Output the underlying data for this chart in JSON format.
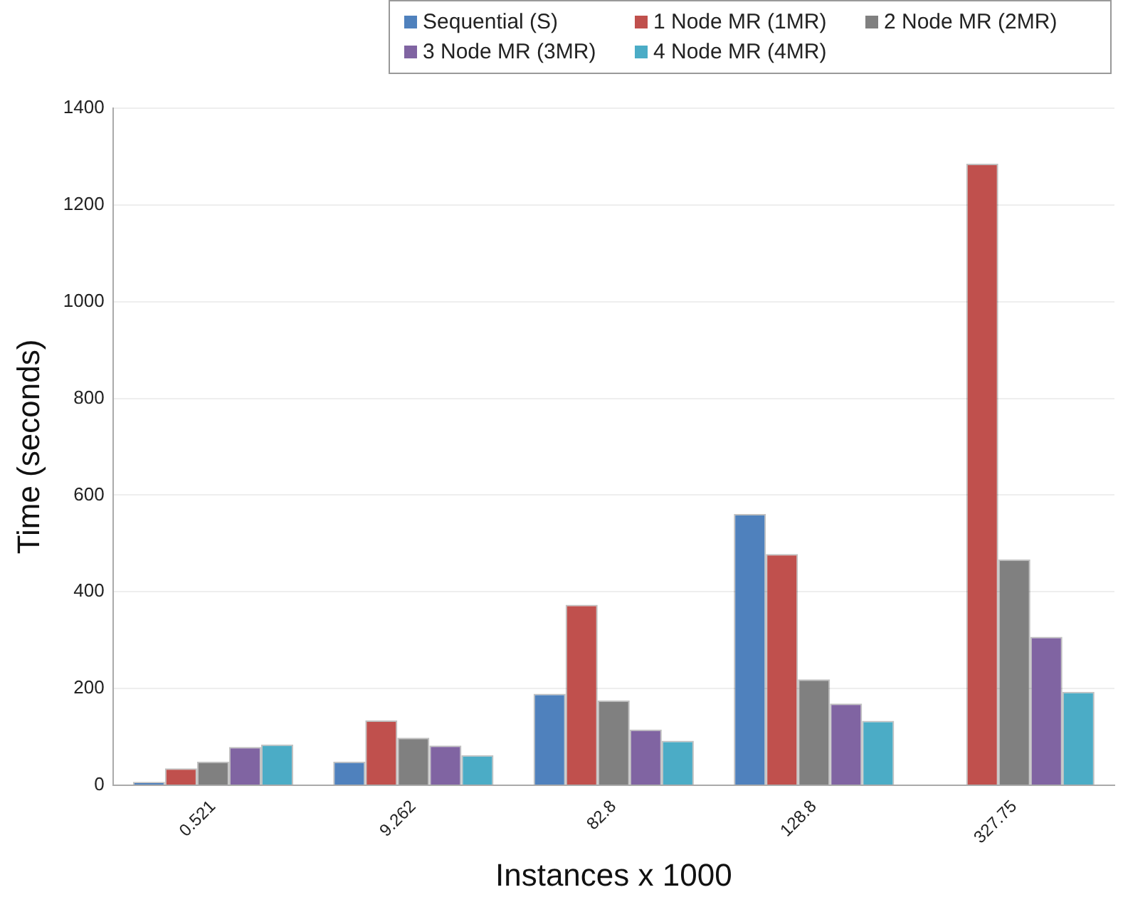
{
  "chart_data": {
    "type": "bar",
    "xlabel": "Instances x 1000",
    "ylabel": "Time (seconds)",
    "categories": [
      "0.521",
      "9.262",
      "82.8",
      "128.8",
      "327.75"
    ],
    "series": [
      {
        "name": "Sequential (S)",
        "color": "#4f81bd",
        "values": [
          7,
          49,
          189,
          561,
          null
        ]
      },
      {
        "name": "1 Node MR (1MR)",
        "color": "#c0504d",
        "values": [
          35,
          134,
          373,
          478,
          1285
        ]
      },
      {
        "name": "2 Node MR (2MR)",
        "color": "#808080",
        "values": [
          49,
          98,
          175,
          219,
          467
        ]
      },
      {
        "name": "3 Node MR (3MR)",
        "color": "#8064a2",
        "values": [
          79,
          82,
          115,
          169,
          307
        ]
      },
      {
        "name": "4 Node MR (4MR)",
        "color": "#4bacc6",
        "values": [
          84,
          62,
          92,
          133,
          193
        ]
      }
    ],
    "ylim": [
      0,
      1400
    ],
    "yticks": [
      0,
      200,
      400,
      600,
      800,
      1000,
      1200,
      1400
    ],
    "grid": "y",
    "legend": "top right"
  }
}
